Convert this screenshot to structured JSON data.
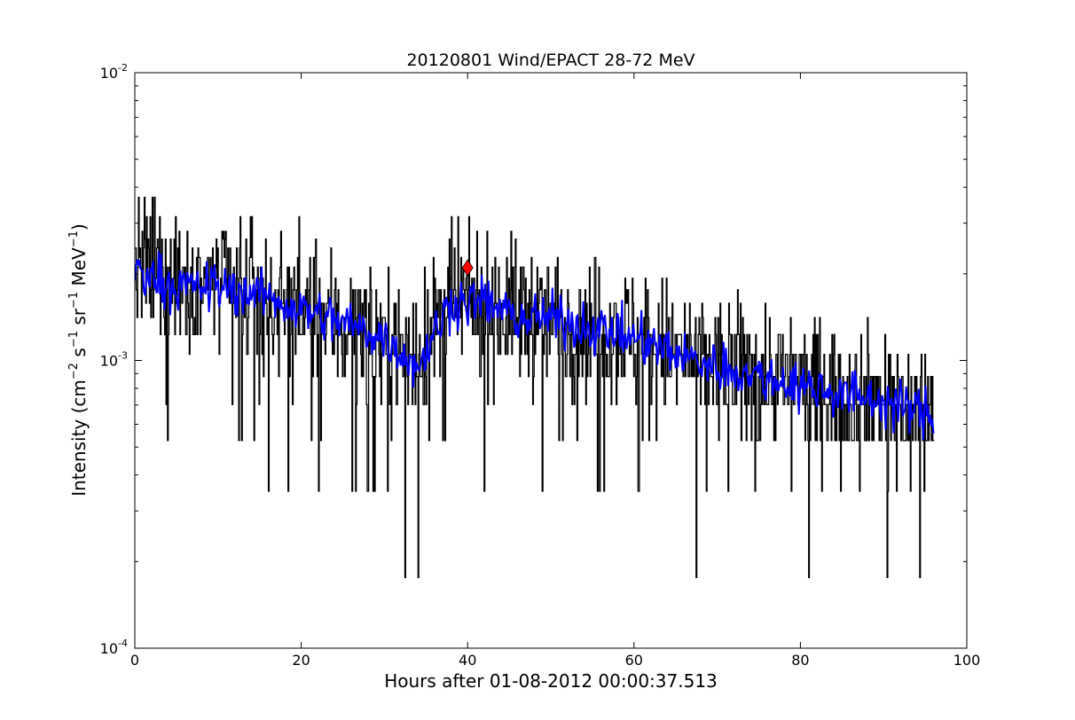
{
  "chart_data": {
    "type": "line",
    "title": "20120801 Wind/EPACT 28-72 MeV",
    "xlabel": "Hours after 01-08-2012 00:00:37.513",
    "ylabel": {
      "base": "Intensity (cm",
      "exp1": "−2",
      "mid1": " s",
      "exp2": "−1",
      "mid2": " sr",
      "exp3": "−1",
      "mid3": " MeV",
      "exp4": "−1",
      "end": ")"
    },
    "xlim": [
      0,
      100
    ],
    "ylim": [
      0.0001,
      0.01
    ],
    "yscale": "log",
    "xticks": [
      0,
      20,
      40,
      60,
      80,
      100
    ],
    "xtick_labels": [
      "0",
      "20",
      "40",
      "60",
      "80",
      "100"
    ],
    "yticks": [
      {
        "value": 0.01,
        "base": "10",
        "exp": "-2"
      },
      {
        "value": 0.001,
        "base": "10",
        "exp": "-3"
      },
      {
        "value": 0.0001,
        "base": "10",
        "exp": "-4"
      }
    ],
    "grid": false,
    "series": [
      {
        "role": "raw intensity",
        "color": "#000000",
        "style": "steps",
        "x_start": 0,
        "x_end": 96,
        "levels": [
          0.000176,
          0.000351,
          0.000527,
          0.000703,
          0.000879,
          0.00105,
          0.00123,
          0.00141,
          0.00158,
          0.00176,
          0.00193,
          0.00211,
          0.00228,
          0.00246,
          0.00264,
          0.00281,
          0.00316,
          0.00369,
          0.00439
        ],
        "trend": [
          {
            "x": 0,
            "y": 0.0021
          },
          {
            "x": 10,
            "y": 0.0018
          },
          {
            "x": 20,
            "y": 0.0015
          },
          {
            "x": 30,
            "y": 0.0012
          },
          {
            "x": 34,
            "y": 0.00102
          },
          {
            "x": 38,
            "y": 0.0016
          },
          {
            "x": 45,
            "y": 0.0015
          },
          {
            "x": 60,
            "y": 0.0012
          },
          {
            "x": 70,
            "y": 0.00095
          },
          {
            "x": 80,
            "y": 0.00082
          },
          {
            "x": 90,
            "y": 0.00072
          },
          {
            "x": 96,
            "y": 0.00065
          }
        ]
      },
      {
        "role": "smoothed intensity",
        "color": "#0000ff",
        "style": "line",
        "trend": [
          {
            "x": 0,
            "y": 0.0021
          },
          {
            "x": 5,
            "y": 0.0018
          },
          {
            "x": 10,
            "y": 0.0018
          },
          {
            "x": 15,
            "y": 0.0017
          },
          {
            "x": 20,
            "y": 0.0015
          },
          {
            "x": 25,
            "y": 0.00135
          },
          {
            "x": 30,
            "y": 0.0012
          },
          {
            "x": 34,
            "y": 0.00095
          },
          {
            "x": 38,
            "y": 0.0016
          },
          {
            "x": 42,
            "y": 0.0016
          },
          {
            "x": 46,
            "y": 0.0014
          },
          {
            "x": 50,
            "y": 0.0014
          },
          {
            "x": 55,
            "y": 0.0013
          },
          {
            "x": 60,
            "y": 0.0012
          },
          {
            "x": 65,
            "y": 0.00105
          },
          {
            "x": 70,
            "y": 0.00095
          },
          {
            "x": 75,
            "y": 0.00088
          },
          {
            "x": 80,
            "y": 0.00082
          },
          {
            "x": 85,
            "y": 0.00077
          },
          {
            "x": 90,
            "y": 0.00072
          },
          {
            "x": 93,
            "y": 0.00068
          },
          {
            "x": 96,
            "y": 0.00065
          }
        ]
      }
    ],
    "marker": {
      "x": 40,
      "y": 0.0021,
      "color": "#ff0000",
      "shape": "diamond"
    }
  }
}
